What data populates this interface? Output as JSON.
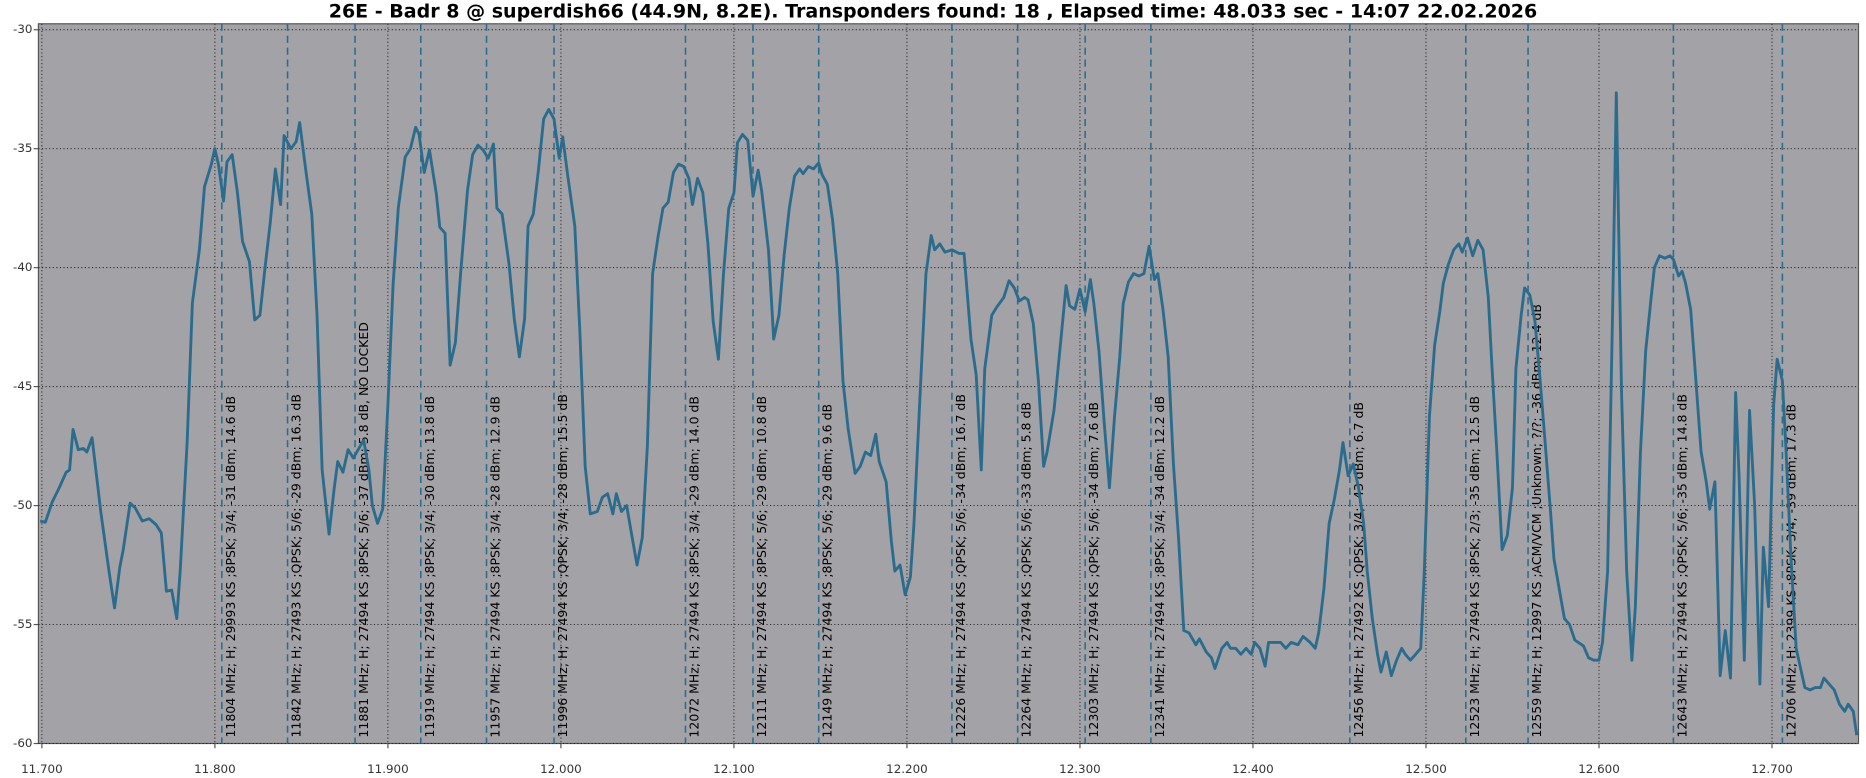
{
  "chart_data": {
    "type": "line",
    "title": "26E - Badr 8 @ superdish66 (44.9N, 8.2E). Transponders found: 18 , Elapsed time: 48.033 sec - 14:07 22.02.2026",
    "xlim": [
      11.698,
      12.75
    ],
    "ylim": [
      -29.75,
      -60
    ],
    "xticks": [
      {
        "value": 11.7,
        "label": "11.700"
      },
      {
        "value": 11.8,
        "label": "11.800"
      },
      {
        "value": 11.9,
        "label": "11.900"
      },
      {
        "value": 12.0,
        "label": "12.000"
      },
      {
        "value": 12.1,
        "label": "12.100"
      },
      {
        "value": 12.2,
        "label": "12.200"
      },
      {
        "value": 12.3,
        "label": "12.300"
      },
      {
        "value": 12.4,
        "label": "12.400"
      },
      {
        "value": 12.5,
        "label": "12.500"
      },
      {
        "value": 12.6,
        "label": "12.600"
      },
      {
        "value": 12.7,
        "label": "12.700"
      }
    ],
    "yticks": [
      -30,
      -35,
      -40,
      -45,
      -50,
      -55,
      -60
    ],
    "grid": true,
    "x": [
      11.699,
      11.702,
      11.706,
      11.71,
      11.714,
      11.716,
      11.718,
      11.721,
      11.724,
      11.726,
      11.729,
      11.734,
      11.739,
      11.742,
      11.745,
      11.747,
      11.751,
      11.754,
      11.758,
      11.762,
      11.766,
      11.769,
      11.772,
      11.775,
      11.778,
      11.78,
      11.784,
      11.787,
      11.791,
      11.794,
      11.798,
      11.8,
      11.802,
      11.805,
      11.807,
      11.81,
      11.813,
      11.816,
      11.82,
      11.823,
      11.826,
      11.829,
      11.832,
      11.835,
      11.838,
      11.84,
      11.844,
      11.847,
      11.849,
      11.853,
      11.856,
      11.859,
      11.862,
      11.866,
      11.869,
      11.871,
      11.874,
      11.877,
      11.88,
      11.882,
      11.886,
      11.889,
      11.891,
      11.894,
      11.897,
      11.9,
      11.903,
      11.906,
      11.91,
      11.913,
      11.916,
      11.918,
      11.921,
      11.924,
      11.928,
      11.93,
      11.933,
      11.936,
      11.939,
      11.942,
      11.946,
      11.949,
      11.952,
      11.955,
      11.958,
      11.961,
      11.963,
      11.966,
      11.97,
      11.973,
      11.976,
      11.979,
      11.981,
      11.984,
      11.987,
      11.99,
      11.993,
      11.996,
      11.999,
      12.001,
      12.004,
      12.008,
      12.011,
      12.014,
      12.017,
      12.021,
      12.024,
      12.027,
      12.03,
      12.032,
      12.035,
      12.038,
      12.041,
      12.044,
      12.047,
      12.05,
      12.053,
      12.056,
      12.059,
      12.062,
      12.065,
      12.068,
      12.071,
      12.074,
      12.076,
      12.079,
      12.082,
      12.085,
      12.088,
      12.091,
      12.094,
      12.097,
      12.1,
      12.102,
      12.105,
      12.108,
      12.111,
      12.114,
      12.116,
      12.12,
      12.123,
      12.126,
      12.129,
      12.132,
      12.135,
      12.138,
      12.14,
      12.143,
      12.146,
      12.149,
      12.151,
      12.154,
      12.157,
      12.16,
      12.163,
      12.166,
      12.17,
      12.173,
      12.176,
      12.179,
      12.182,
      12.184,
      12.188,
      12.191,
      12.193,
      12.196,
      12.199,
      12.202,
      12.204,
      12.208,
      12.211,
      12.214,
      12.216,
      12.219,
      12.222,
      12.226,
      12.23,
      12.233,
      12.237,
      12.24,
      12.243,
      12.245,
      12.249,
      12.252,
      12.256,
      12.259,
      12.262,
      12.265,
      12.268,
      12.27,
      12.273,
      12.276,
      12.279,
      12.281,
      12.285,
      12.288,
      12.292,
      12.294,
      12.297,
      12.3,
      12.303,
      12.306,
      12.308,
      12.311,
      12.314,
      12.317,
      12.32,
      12.323,
      12.325,
      12.328,
      12.331,
      12.334,
      12.337,
      12.34,
      12.343,
      12.345,
      12.348,
      12.351,
      12.354,
      12.357,
      12.36,
      12.363,
      12.367,
      12.369,
      12.373,
      12.376,
      12.378,
      12.382,
      12.385,
      12.387,
      12.39,
      12.393,
      12.396,
      12.399,
      12.401,
      12.404,
      12.407,
      12.409,
      12.412,
      12.416,
      12.419,
      12.422,
      12.426,
      12.429,
      12.433,
      12.436,
      12.438,
      12.441,
      12.444,
      12.447,
      12.45,
      12.452,
      12.455,
      12.458,
      12.461,
      12.464,
      12.466,
      12.469,
      12.472,
      12.474,
      12.477,
      12.48,
      12.483,
      12.486,
      12.488,
      12.491,
      12.494,
      12.497,
      12.499,
      12.502,
      12.505,
      12.508,
      12.51,
      12.513,
      12.516,
      12.519,
      12.521,
      12.524,
      12.527,
      12.53,
      12.533,
      12.536,
      12.538,
      12.541,
      12.544,
      12.547,
      12.55,
      12.552,
      12.555,
      12.557,
      12.56,
      12.563,
      12.566,
      12.569,
      12.572,
      12.574,
      12.577,
      12.58,
      12.583,
      12.586,
      12.588,
      12.591,
      12.594,
      12.597,
      12.6,
      12.602,
      12.605,
      12.608,
      12.61,
      12.613,
      12.616,
      12.619,
      12.621,
      12.624,
      12.627,
      12.63,
      12.632,
      12.635,
      12.638,
      12.641,
      12.643,
      12.646,
      12.648,
      12.65,
      12.653,
      12.656,
      12.659,
      12.662,
      12.664,
      12.667,
      12.67,
      12.673,
      12.676,
      12.679,
      12.681,
      12.684,
      12.687,
      12.69,
      12.693,
      12.695,
      12.698,
      12.701,
      12.703,
      12.706,
      12.708,
      12.711,
      12.714,
      12.717,
      12.719,
      12.722,
      12.725,
      12.728,
      12.73,
      12.733,
      12.736,
      12.739,
      12.742,
      12.744,
      12.747,
      12.749
    ],
    "series": [
      {
        "color": "#2b6c8c",
        "values": [
          -50.65,
          -50.7,
          -49.85,
          -49.25,
          -48.6,
          -48.5,
          -46.8,
          -47.65,
          -47.6,
          -47.75,
          -47.15,
          -50.25,
          -52.85,
          -54.3,
          -52.6,
          -51.85,
          -49.9,
          -50.1,
          -50.65,
          -50.55,
          -50.8,
          -51.15,
          -53.6,
          -53.55,
          -54.75,
          -52.65,
          -47.25,
          -41.5,
          -39.25,
          -36.6,
          -35.65,
          -35.0,
          -35.65,
          -37.2,
          -35.55,
          -35.25,
          -36.85,
          -38.9,
          -39.75,
          -42.2,
          -42.0,
          -40.0,
          -38.1,
          -35.85,
          -37.35,
          -34.45,
          -35.0,
          -34.7,
          -33.9,
          -36.15,
          -37.75,
          -42.0,
          -48.5,
          -51.2,
          -49.25,
          -48.15,
          -48.6,
          -47.65,
          -48.0,
          -47.75,
          -47.25,
          -48.5,
          -50.0,
          -50.75,
          -50.15,
          -45.75,
          -40.75,
          -37.5,
          -35.35,
          -35.0,
          -34.1,
          -34.4,
          -36.0,
          -35.05,
          -36.9,
          -38.3,
          -38.55,
          -44.1,
          -43.15,
          -40.25,
          -36.75,
          -35.25,
          -34.85,
          -35.05,
          -35.4,
          -34.8,
          -37.5,
          -37.75,
          -39.85,
          -42.15,
          -43.75,
          -42.15,
          -38.25,
          -37.75,
          -35.9,
          -33.75,
          -33.35,
          -33.75,
          -35.4,
          -34.5,
          -36.15,
          -38.25,
          -42.75,
          -48.35,
          -50.35,
          -50.25,
          -49.65,
          -49.5,
          -50.35,
          -49.5,
          -50.25,
          -50.0,
          -51.25,
          -52.5,
          -51.35,
          -47.5,
          -40.25,
          -38.75,
          -37.5,
          -37.25,
          -36.0,
          -35.65,
          -35.75,
          -36.25,
          -37.35,
          -36.25,
          -36.85,
          -39.0,
          -42.25,
          -43.85,
          -40.25,
          -37.5,
          -36.85,
          -34.75,
          -34.4,
          -34.65,
          -37.0,
          -35.9,
          -36.75,
          -39.25,
          -43.0,
          -42.0,
          -39.5,
          -37.5,
          -36.15,
          -35.85,
          -36.05,
          -35.75,
          -35.85,
          -35.6,
          -36.1,
          -36.5,
          -38.0,
          -40.25,
          -44.75,
          -46.75,
          -48.65,
          -48.35,
          -47.75,
          -47.9,
          -47.0,
          -48.15,
          -49.0,
          -51.5,
          -52.75,
          -52.5,
          -53.75,
          -53.0,
          -50.85,
          -44.75,
          -40.25,
          -38.65,
          -39.25,
          -39.0,
          -39.35,
          -39.25,
          -39.4,
          -39.4,
          -43.0,
          -44.5,
          -48.5,
          -44.25,
          -42.0,
          -41.65,
          -41.25,
          -40.55,
          -40.85,
          -41.4,
          -41.25,
          -41.35,
          -42.35,
          -44.75,
          -48.35,
          -47.75,
          -46.0,
          -43.75,
          -40.75,
          -41.6,
          -41.75,
          -40.9,
          -41.85,
          -40.5,
          -41.5,
          -43.5,
          -46.5,
          -49.25,
          -46.25,
          -43.75,
          -41.5,
          -40.6,
          -40.25,
          -40.35,
          -40.25,
          -39.1,
          -40.5,
          -40.25,
          -41.75,
          -43.75,
          -48.25,
          -51.35,
          -55.25,
          -55.35,
          -55.85,
          -55.6,
          -56.15,
          -56.4,
          -56.85,
          -56.0,
          -55.75,
          -56.0,
          -56.0,
          -56.25,
          -56.0,
          -56.25,
          -55.75,
          -56.0,
          -56.75,
          -55.75,
          -55.75,
          -55.75,
          -56.0,
          -55.75,
          -55.85,
          -55.5,
          -55.75,
          -56.0,
          -55.35,
          -53.5,
          -50.75,
          -49.75,
          -48.5,
          -47.35,
          -48.75,
          -48.25,
          -49.25,
          -50.75,
          -52.75,
          -54.75,
          -56.25,
          -57.0,
          -56.15,
          -57.15,
          -56.5,
          -56.0,
          -56.25,
          -56.5,
          -56.25,
          -56.0,
          -52.75,
          -46.25,
          -43.25,
          -41.85,
          -40.65,
          -39.85,
          -39.25,
          -39.0,
          -39.35,
          -38.75,
          -39.5,
          -38.85,
          -39.25,
          -41.25,
          -44.0,
          -47.75,
          -51.85,
          -51.25,
          -49.25,
          -44.25,
          -42.0,
          -40.85,
          -41.15,
          -42.25,
          -44.75,
          -47.5,
          -50.25,
          -52.25,
          -53.5,
          -54.75,
          -55.0,
          -55.65,
          -55.75,
          -55.9,
          -56.4,
          -56.5,
          -56.5,
          -55.75,
          -52.75,
          -41.25,
          -32.65,
          -45.25,
          -52.75,
          -56.5,
          -54.25,
          -47.75,
          -43.5,
          -41.35,
          -40.0,
          -39.5,
          -39.6,
          -39.5,
          -39.65,
          -40.35,
          -40.15,
          -40.65,
          -41.75,
          -44.75,
          -47.75,
          -49.0,
          -50.15,
          -49.0,
          -57.15,
          -55.25,
          -57.25,
          -45.25,
          -48.75,
          -56.5,
          -46.0,
          -50.0,
          -57.5,
          -51.75,
          -54.25,
          -45.75,
          -43.85,
          -44.75,
          -47.5,
          -52.25,
          -56.0,
          -57.0,
          -57.65,
          -57.75,
          -57.65,
          -57.65,
          -57.25,
          -57.5,
          -57.75,
          -58.35,
          -58.65,
          -58.35,
          -58.65,
          -59.65
        ]
      }
    ],
    "transponders": [
      {
        "x": 11.804,
        "label": "11804 MHz; H; 29993 KS ;8PSK; 3/4; -31 dBm; 14.6 dB"
      },
      {
        "x": 11.842,
        "label": "11842 MHz; H; 27493 KS ;QPSK; 5/6; -29 dBm; 16.3 dB"
      },
      {
        "x": 11.881,
        "label": "11881 MHz; H; 27494 KS ;8PSK; 5/6; -37 dBm; 5.8 dB, NO LOCKED"
      },
      {
        "x": 11.919,
        "label": "11919 MHz; H; 27494 KS ;8PSK; 3/4; -30 dBm; 13.8 dB"
      },
      {
        "x": 11.957,
        "label": "11957 MHz; H; 27494 KS ;8PSK; 3/4; -28 dBm; 12.9 dB"
      },
      {
        "x": 11.996,
        "label": "11996 MHz; H; 27494 KS ;QPSK; 3/4; -28 dBm; 15.5 dB"
      },
      {
        "x": 12.072,
        "label": "12072 MHz; H; 27494 KS ;8PSK; 3/4; -29 dBm; 14.0 dB"
      },
      {
        "x": 12.111,
        "label": "12111 MHz; H; 27494 KS ;8PSK; 5/6; -29 dBm; 10.8 dB"
      },
      {
        "x": 12.149,
        "label": "12149 MHz; H; 27494 KS ;8PSK; 5/6; -29 dBm; 9.6 dB"
      },
      {
        "x": 12.226,
        "label": "12226 MHz; H; 27494 KS ;QPSK; 5/6; -34 dBm; 16.7 dB"
      },
      {
        "x": 12.264,
        "label": "12264 MHz; H; 27494 KS ;QPSK; 5/6; -33 dBm; 5.8 dB"
      },
      {
        "x": 12.303,
        "label": "12303 MHz; H; 27494 KS ;QPSK; 5/6; -34 dBm; 7.6 dB"
      },
      {
        "x": 12.341,
        "label": "12341 MHz; H; 27494 KS ;8PSK; 3/4; -34 dBm; 12.2 dB"
      },
      {
        "x": 12.456,
        "label": "12456 MHz; H; 27492 KS ;QPSK; 3/4; -43 dBm; 6.7 dB"
      },
      {
        "x": 12.523,
        "label": "12523 MHz; H; 27494 KS ;8PSK; 2/3; -35 dBm; 12.5 dB"
      },
      {
        "x": 12.559,
        "label": "12559 MHz; H; 12997 KS ;ACM/VCM ;Unknown; ?/?; -36 dBm; 12.4 dB"
      },
      {
        "x": 12.643,
        "label": "12643 MHz; H; 27494 KS ;QPSK; 5/6; -35 dBm; 14.8 dB"
      },
      {
        "x": 12.706,
        "label": "12706 MHz; H; 2399 KS ;8PSK; 3/4; -39 dBm; 17.3 dB"
      }
    ]
  }
}
